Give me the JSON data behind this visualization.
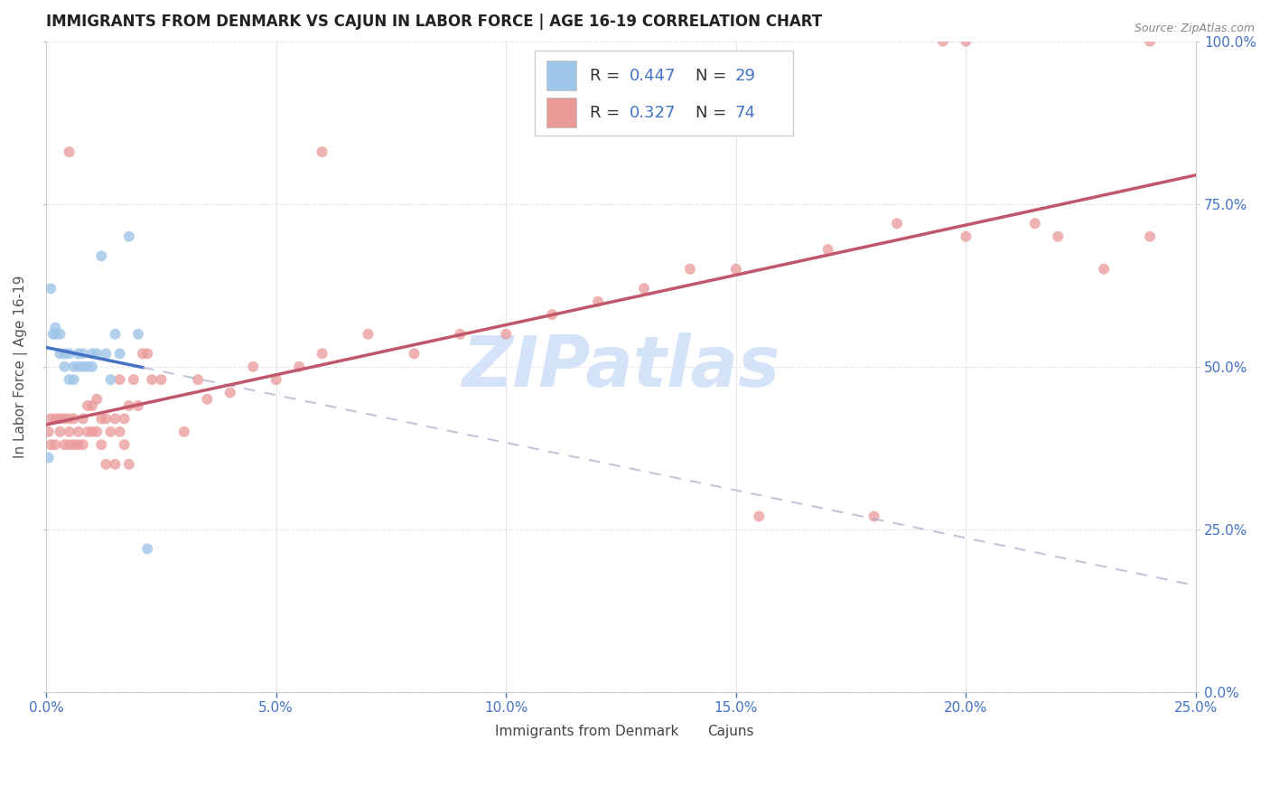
{
  "title": "IMMIGRANTS FROM DENMARK VS CAJUN IN LABOR FORCE | AGE 16-19 CORRELATION CHART",
  "source": "Source: ZipAtlas.com",
  "ylabel": "In Labor Force | Age 16-19",
  "xlim": [
    0.0,
    0.25
  ],
  "ylim": [
    0.0,
    1.0
  ],
  "xticks": [
    0.0,
    0.05,
    0.1,
    0.15,
    0.2,
    0.25
  ],
  "yticks": [
    0.0,
    0.25,
    0.5,
    0.75,
    1.0
  ],
  "color_blue": "#9fc5e8",
  "color_pink": "#ea9999",
  "color_blue_line": "#4472c4",
  "color_pink_line": "#c0576a",
  "watermark_color": "#d4e3f7",
  "legend_label1": "Immigrants from Denmark",
  "legend_label2": "Cajuns",
  "r1": "0.447",
  "n1": "29",
  "r2": "0.327",
  "n2": "74",
  "text_color": "#4472c4",
  "grid_color": "#e8e8e8",
  "dk_x": [
    0.0005,
    0.001,
    0.0015,
    0.002,
    0.002,
    0.003,
    0.003,
    0.004,
    0.004,
    0.005,
    0.005,
    0.006,
    0.006,
    0.007,
    0.007,
    0.008,
    0.008,
    0.009,
    0.01,
    0.01,
    0.011,
    0.012,
    0.013,
    0.014,
    0.015,
    0.016,
    0.018,
    0.02,
    0.022
  ],
  "dk_y": [
    0.36,
    0.62,
    0.55,
    0.55,
    0.56,
    0.55,
    0.52,
    0.5,
    0.52,
    0.48,
    0.52,
    0.5,
    0.48,
    0.5,
    0.52,
    0.5,
    0.52,
    0.5,
    0.5,
    0.52,
    0.52,
    0.67,
    0.52,
    0.48,
    0.55,
    0.52,
    0.7,
    0.55,
    0.22
  ],
  "cj_x": [
    0.0005,
    0.001,
    0.001,
    0.002,
    0.002,
    0.003,
    0.003,
    0.004,
    0.004,
    0.005,
    0.005,
    0.005,
    0.006,
    0.006,
    0.007,
    0.007,
    0.008,
    0.008,
    0.009,
    0.009,
    0.01,
    0.01,
    0.011,
    0.011,
    0.012,
    0.012,
    0.013,
    0.013,
    0.014,
    0.015,
    0.015,
    0.016,
    0.016,
    0.017,
    0.017,
    0.018,
    0.018,
    0.019,
    0.02,
    0.021,
    0.022,
    0.023,
    0.025,
    0.03,
    0.033,
    0.035,
    0.04,
    0.045,
    0.05,
    0.055,
    0.06,
    0.07,
    0.08,
    0.09,
    0.1,
    0.11,
    0.12,
    0.13,
    0.14,
    0.15,
    0.17,
    0.185,
    0.195,
    0.2,
    0.215,
    0.22,
    0.23,
    0.24,
    0.005,
    0.06,
    0.155,
    0.18,
    0.2,
    0.24
  ],
  "cj_y": [
    0.4,
    0.38,
    0.42,
    0.38,
    0.42,
    0.4,
    0.42,
    0.38,
    0.42,
    0.38,
    0.4,
    0.42,
    0.38,
    0.42,
    0.38,
    0.4,
    0.38,
    0.42,
    0.4,
    0.44,
    0.4,
    0.44,
    0.4,
    0.45,
    0.42,
    0.38,
    0.42,
    0.35,
    0.4,
    0.42,
    0.35,
    0.4,
    0.48,
    0.38,
    0.42,
    0.44,
    0.35,
    0.48,
    0.44,
    0.52,
    0.52,
    0.48,
    0.48,
    0.4,
    0.48,
    0.45,
    0.46,
    0.5,
    0.48,
    0.5,
    0.52,
    0.55,
    0.52,
    0.55,
    0.55,
    0.58,
    0.6,
    0.62,
    0.65,
    0.65,
    0.68,
    0.72,
    1.0,
    0.7,
    0.72,
    0.7,
    0.65,
    0.7,
    0.83,
    0.83,
    0.27,
    0.27,
    1.0,
    1.0
  ]
}
